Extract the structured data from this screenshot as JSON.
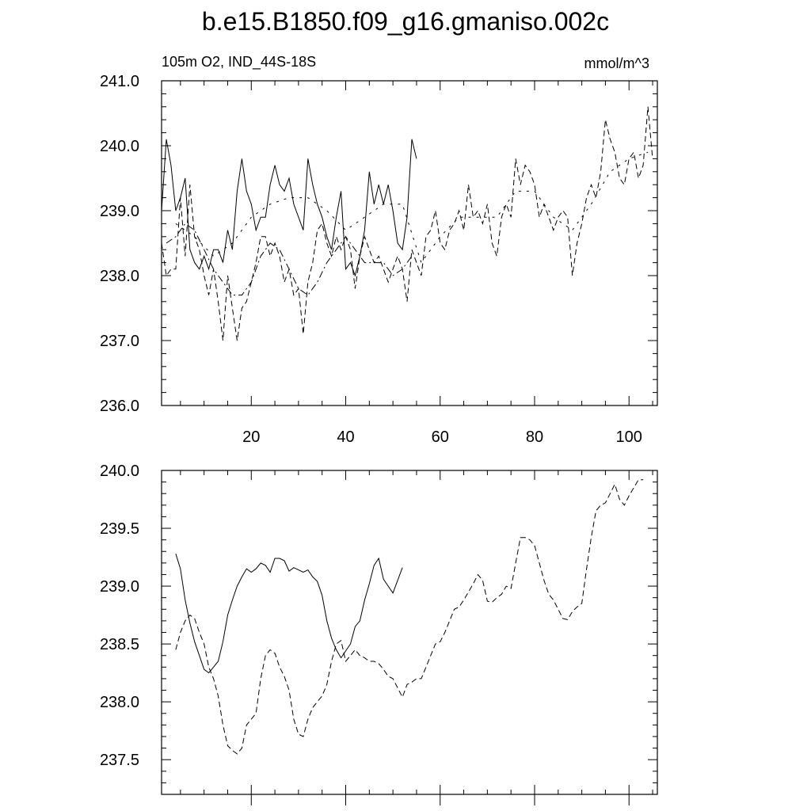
{
  "title": "b.e15.B1850.f09_g16.gmaniso.002c",
  "left_subtitle": "105m O2, IND_44S-18S",
  "right_subtitle": "mmol/m^3",
  "chart_data": [
    {
      "type": "line",
      "xlim": [
        1,
        106
      ],
      "ylim": [
        236,
        241
      ],
      "x_ticks": [
        20,
        40,
        60,
        80,
        100
      ],
      "x_tick_labels": [
        "20",
        "40",
        "60",
        "80",
        "100"
      ],
      "y_ticks": [
        236,
        237,
        238,
        239,
        240,
        241
      ],
      "y_tick_labels": [
        "236.0",
        "237.0",
        "238.0",
        "239.0",
        "240.0",
        "241.0"
      ],
      "grid": false,
      "series": [
        {
          "style": "solid",
          "x": [
            1,
            2,
            3,
            4,
            5,
            6,
            7,
            8,
            9,
            10,
            11,
            12,
            13,
            14,
            15,
            16,
            17,
            18,
            19,
            20,
            21,
            22,
            23,
            24,
            25,
            26,
            27,
            28,
            29,
            30,
            31,
            32,
            33,
            34,
            35,
            36,
            37,
            38,
            39,
            40,
            41,
            42,
            43,
            44,
            45,
            46,
            47,
            48,
            49,
            50,
            51,
            52,
            53,
            54,
            55
          ],
          "y": [
            239.0,
            240.1,
            239.7,
            239.0,
            239.2,
            239.5,
            238.4,
            238.2,
            238.1,
            238.3,
            238.1,
            238.4,
            238.4,
            238.2,
            238.7,
            238.4,
            239.3,
            239.8,
            239.3,
            239.1,
            238.7,
            238.9,
            238.9,
            239.4,
            239.7,
            239.4,
            239.3,
            239.5,
            239.1,
            238.9,
            238.7,
            239.8,
            239.4,
            239.1,
            238.9,
            238.6,
            238.4,
            238.9,
            239.3,
            238.1,
            238.2,
            238.0,
            238.3,
            238.7,
            239.6,
            239.1,
            239.4,
            239.1,
            239.4,
            239.0,
            238.5,
            238.4,
            238.9,
            240.1,
            239.8
          ]
        },
        {
          "style": "dashed",
          "x": [
            1,
            2,
            3,
            4,
            5,
            6,
            7,
            8,
            9,
            10,
            11,
            12,
            13,
            14,
            15,
            16,
            17,
            18,
            19,
            20,
            21,
            22,
            23,
            24,
            25,
            26,
            27,
            28,
            29,
            30,
            31,
            32,
            33,
            34,
            35,
            36,
            37,
            38,
            39,
            40,
            41,
            42,
            43,
            44,
            45,
            46,
            47,
            48,
            49,
            50,
            51,
            52,
            53,
            54,
            55,
            56,
            57,
            58,
            59,
            60,
            61,
            62,
            63,
            64,
            65,
            66,
            67,
            68,
            69,
            70,
            71,
            72,
            73,
            74,
            75,
            76,
            77,
            78,
            79,
            80,
            81,
            82,
            83,
            84,
            85,
            86,
            87,
            88,
            89,
            90,
            91,
            92,
            93,
            94,
            95,
            96,
            97,
            98,
            99,
            100,
            101,
            102,
            103,
            104,
            105
          ],
          "y": [
            238.5,
            238.0,
            238.1,
            238.1,
            239.2,
            238.3,
            239.4,
            238.6,
            238.4,
            238.0,
            237.7,
            238.1,
            237.6,
            237.0,
            238.0,
            237.5,
            237.0,
            237.5,
            237.6,
            237.9,
            238.2,
            238.6,
            238.6,
            238.3,
            238.5,
            238.3,
            237.9,
            238.1,
            237.7,
            237.8,
            237.1,
            237.9,
            238.2,
            238.7,
            238.8,
            238.5,
            238.3,
            238.6,
            238.4,
            238.6,
            238.4,
            237.8,
            238.3,
            238.6,
            238.4,
            238.2,
            238.3,
            238.1,
            237.9,
            238.1,
            238.3,
            238.1,
            237.6,
            238.4,
            238.2,
            238.0,
            238.6,
            238.7,
            239.0,
            238.5,
            238.4,
            238.7,
            238.8,
            239.0,
            238.7,
            239.4,
            238.9,
            239.0,
            238.8,
            239.1,
            238.5,
            238.3,
            238.9,
            239.1,
            238.9,
            239.8,
            239.4,
            239.7,
            239.6,
            239.4,
            238.9,
            239.1,
            238.9,
            238.7,
            238.9,
            239.0,
            238.9,
            238.0,
            238.5,
            238.8,
            239.2,
            239.4,
            239.2,
            239.6,
            240.4,
            240.1,
            239.9,
            239.5,
            239.4,
            239.8,
            239.9,
            239.5,
            239.7,
            240.6,
            239.8
          ]
        },
        {
          "style": "dash-dot",
          "x": [
            2,
            4,
            6,
            8,
            10,
            12,
            14,
            16,
            18,
            20,
            22,
            24,
            26,
            28,
            30,
            32,
            34,
            36,
            38,
            40,
            42,
            44,
            46,
            48,
            50,
            52,
            54
          ],
          "y": [
            238.5,
            238.6,
            238.8,
            238.7,
            238.4,
            238.1,
            237.9,
            237.7,
            237.7,
            237.9,
            238.3,
            238.5,
            238.4,
            238.1,
            237.8,
            237.7,
            237.9,
            238.2,
            238.4,
            238.6,
            238.4,
            238.2,
            238.2,
            238.2,
            238.0,
            238.1,
            238.3
          ]
        },
        {
          "style": "long-dash",
          "x": [
            4,
            8,
            12,
            16,
            20,
            24,
            28,
            32,
            36,
            40,
            44,
            48,
            52,
            56,
            60,
            64,
            68,
            72,
            76,
            80,
            84,
            88,
            92,
            96,
            100,
            104
          ],
          "y": [
            238.8,
            238.6,
            238.3,
            238.5,
            238.9,
            239.1,
            239.2,
            239.2,
            239.0,
            238.7,
            238.9,
            239.1,
            239.1,
            238.2,
            238.6,
            238.9,
            238.9,
            238.9,
            239.3,
            239.3,
            238.9,
            238.7,
            239.1,
            239.6,
            239.8,
            239.9
          ]
        }
      ]
    },
    {
      "type": "line",
      "xlim": [
        1,
        106
      ],
      "ylim": [
        237.2,
        240.0
      ],
      "x_ticks": [
        20,
        40,
        60,
        80,
        100
      ],
      "y_ticks": [
        237.5,
        238.0,
        238.5,
        239.0,
        239.5,
        240.0
      ],
      "y_tick_labels": [
        "237.5",
        "238.0",
        "238.5",
        "239.0",
        "239.5",
        "240.0"
      ],
      "grid": false,
      "series": [
        {
          "style": "solid",
          "x": [
            4,
            5,
            6,
            7,
            8,
            9,
            10,
            11,
            12,
            13,
            14,
            15,
            16,
            17,
            18,
            19,
            20,
            21,
            22,
            23,
            24,
            25,
            26,
            27,
            28,
            29,
            30,
            31,
            32,
            33,
            34,
            35,
            36,
            37,
            38,
            39,
            40,
            41,
            42,
            43,
            44,
            45,
            46,
            47,
            48,
            49,
            50,
            51,
            52
          ],
          "y": [
            239.28,
            239.15,
            238.88,
            238.68,
            238.52,
            238.4,
            238.28,
            238.25,
            238.3,
            238.35,
            238.52,
            238.75,
            238.88,
            239.0,
            239.08,
            239.15,
            239.12,
            239.15,
            239.2,
            239.18,
            239.12,
            239.24,
            239.24,
            239.22,
            239.13,
            239.16,
            239.14,
            239.12,
            239.14,
            239.08,
            239.04,
            238.92,
            238.7,
            238.55,
            238.45,
            238.38,
            238.44,
            238.5,
            238.65,
            238.7,
            238.88,
            239.02,
            239.18,
            239.24,
            239.06,
            239.0,
            238.94,
            239.05,
            239.16
          ]
        },
        {
          "style": "dashed",
          "x": [
            4,
            5,
            6,
            7,
            8,
            9,
            10,
            11,
            12,
            13,
            14,
            15,
            16,
            17,
            18,
            19,
            20,
            21,
            22,
            23,
            24,
            25,
            26,
            27,
            28,
            29,
            30,
            31,
            32,
            33,
            34,
            35,
            36,
            37,
            38,
            39,
            40,
            41,
            42,
            43,
            44,
            45,
            46,
            47,
            48,
            49,
            50,
            51,
            52,
            53,
            54,
            55,
            56,
            57,
            58,
            59,
            60,
            61,
            62,
            63,
            64,
            65,
            66,
            67,
            68,
            69,
            70,
            71,
            72,
            73,
            74,
            75,
            76,
            77,
            78,
            79,
            80,
            81,
            82,
            83,
            84,
            85,
            86,
            87,
            88,
            89,
            90,
            91,
            92,
            93,
            94,
            95,
            96,
            97,
            98,
            99,
            100,
            101,
            102,
            103
          ],
          "y": [
            238.45,
            238.6,
            238.7,
            238.75,
            238.72,
            238.6,
            238.5,
            238.3,
            238.2,
            238.05,
            237.8,
            237.62,
            237.58,
            237.55,
            237.6,
            237.8,
            237.85,
            237.9,
            238.2,
            238.4,
            238.45,
            238.42,
            238.3,
            238.22,
            238.1,
            237.85,
            237.72,
            237.7,
            237.85,
            237.95,
            238.0,
            238.05,
            238.15,
            238.35,
            238.5,
            238.53,
            238.35,
            238.4,
            238.45,
            238.4,
            238.38,
            238.35,
            238.35,
            238.33,
            238.28,
            238.22,
            238.2,
            238.12,
            238.04,
            238.15,
            238.17,
            238.2,
            238.2,
            238.3,
            238.4,
            238.5,
            238.52,
            238.6,
            238.7,
            238.8,
            238.82,
            238.88,
            238.95,
            239.02,
            239.1,
            239.05,
            238.87,
            238.86,
            238.9,
            238.93,
            239.0,
            238.98,
            239.2,
            239.42,
            239.42,
            239.4,
            239.35,
            239.2,
            239.05,
            238.93,
            238.88,
            238.8,
            238.72,
            238.71,
            238.78,
            238.82,
            238.85,
            239.15,
            239.42,
            239.65,
            239.7,
            239.72,
            239.8,
            239.88,
            239.75,
            239.7,
            239.78,
            239.85,
            239.92,
            239.92
          ]
        }
      ]
    }
  ]
}
